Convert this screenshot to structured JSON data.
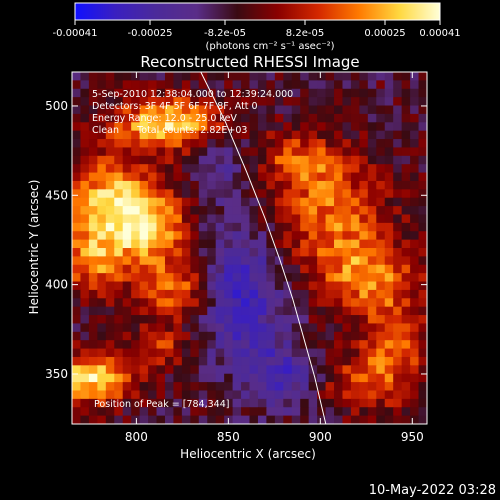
{
  "colorbar": {
    "ticks": [
      "-0.00041",
      "-0.00025",
      "-8.2e-05",
      "8.2e-05",
      "0.00025",
      "0.00041"
    ],
    "units": "(photons cm⁻² s⁻¹ asec⁻²)"
  },
  "title": "Reconstructed RHESSI Image",
  "annotations": [
    "5-Sep-2010 12:38:04.000 to 12:39:24.000",
    "Detectors: 3F 4F 5F 6F 7F 8F, Att 0",
    "Energy Range: 12.0 - 25.0 keV",
    "Clean      Total counts: 2.82E+03"
  ],
  "peak_label": "Position of Peak = [784,344]",
  "footer_date": "10-May-2022 03:28",
  "chart_data": {
    "type": "heatmap",
    "title": "Reconstructed RHESSI Image",
    "xlabel": "Heliocentric X (arcsec)",
    "ylabel": "Heliocentric Y (arcsec)",
    "xlim": [
      765,
      958
    ],
    "ylim": [
      322,
      519
    ],
    "x_ticks": [
      800,
      850,
      900,
      950
    ],
    "y_ticks": [
      350,
      400,
      450,
      500
    ],
    "color_range": [
      -0.00041,
      0.00041
    ],
    "colormap": [
      "#1010ff",
      "#3a1fc0",
      "#4b2a9a",
      "#5a2d88",
      "#3a0a12",
      "#8a0000",
      "#d42800",
      "#ff7a00",
      "#ffd840",
      "#ffffd8"
    ],
    "grid_cells": [
      42,
      42
    ],
    "peak_position": [
      784,
      344
    ],
    "limb_curve": [
      [
        835,
        519
      ],
      [
        848,
        492
      ],
      [
        860,
        463
      ],
      [
        870,
        437
      ],
      [
        878,
        414
      ],
      [
        885,
        392
      ],
      [
        891,
        370
      ],
      [
        897,
        348
      ],
      [
        903,
        322
      ]
    ],
    "bright_sources": [
      {
        "x": 818,
        "y": 490,
        "sx": 22,
        "sy": 10,
        "amp": 0.00038
      },
      {
        "x": 787,
        "y": 448,
        "sx": 20,
        "sy": 16,
        "amp": 0.00036
      },
      {
        "x": 808,
        "y": 430,
        "sx": 14,
        "sy": 12,
        "amp": 0.0003
      },
      {
        "x": 777,
        "y": 414,
        "sx": 14,
        "sy": 14,
        "amp": 0.00028
      },
      {
        "x": 820,
        "y": 398,
        "sx": 14,
        "sy": 12,
        "amp": 0.00026
      },
      {
        "x": 776,
        "y": 348,
        "sx": 16,
        "sy": 10,
        "amp": 0.0004
      },
      {
        "x": 812,
        "y": 365,
        "sx": 12,
        "sy": 8,
        "amp": 0.00018
      },
      {
        "x": 888,
        "y": 470,
        "sx": 14,
        "sy": 10,
        "amp": 0.0002
      },
      {
        "x": 905,
        "y": 440,
        "sx": 22,
        "sy": 22,
        "amp": 0.00026
      },
      {
        "x": 925,
        "y": 405,
        "sx": 18,
        "sy": 14,
        "amp": 0.00024
      },
      {
        "x": 940,
        "y": 365,
        "sx": 14,
        "sy": 22,
        "amp": 0.00022
      },
      {
        "x": 920,
        "y": 345,
        "sx": 12,
        "sy": 10,
        "amp": 0.00018
      }
    ],
    "dim_regions": [
      {
        "x": 858,
        "y": 395,
        "sx": 16,
        "sy": 30,
        "amp": -0.00024
      },
      {
        "x": 880,
        "y": 350,
        "sx": 12,
        "sy": 12,
        "amp": -0.00018
      },
      {
        "x": 845,
        "y": 470,
        "sx": 10,
        "sy": 14,
        "amp": -0.00014
      }
    ]
  }
}
